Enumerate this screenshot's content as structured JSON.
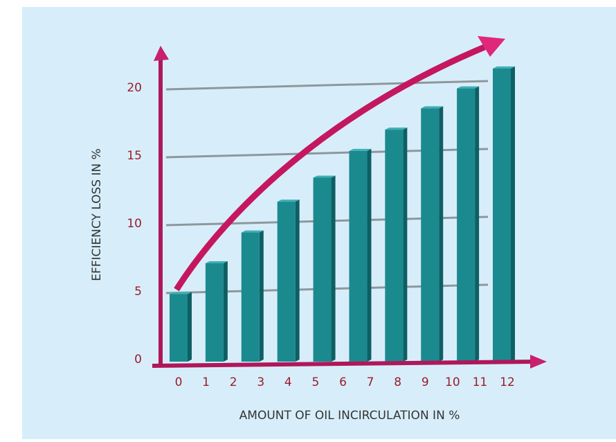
{
  "chart_data": {
    "type": "bar",
    "x_label": "AMOUNT OF OIL INCIRCULATION IN %",
    "y_label": "EFFICIENCY LOSS IN %",
    "xticks": [
      0,
      1,
      2,
      3,
      4,
      5,
      6,
      7,
      8,
      9,
      10,
      11,
      12
    ],
    "values": [
      4.9,
      7.1,
      9.3,
      11.5,
      13.2,
      15.1,
      16.6,
      18.1,
      19.5,
      20.9
    ],
    "color": "#1a8a8f",
    "ylim": [
      0,
      22
    ],
    "yticks": [
      0,
      5,
      10,
      15,
      20
    ],
    "grid": true
  }
}
